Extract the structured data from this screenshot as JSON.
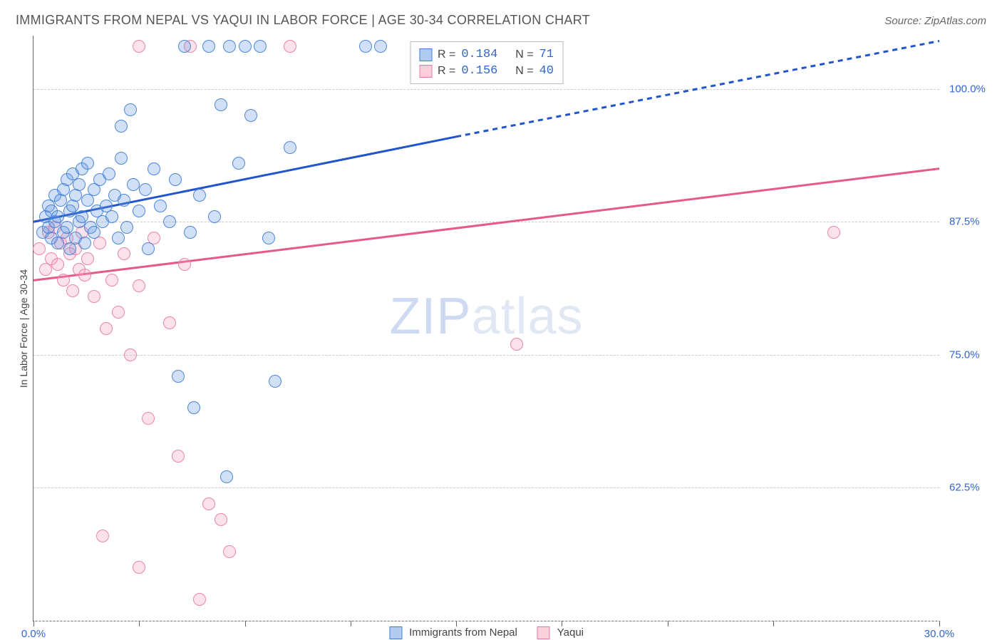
{
  "header": {
    "title": "IMMIGRANTS FROM NEPAL VS YAQUI IN LABOR FORCE | AGE 30-34 CORRELATION CHART",
    "source_prefix": "Source: ",
    "source_name": "ZipAtlas.com"
  },
  "chart": {
    "type": "scatter",
    "ylabel": "In Labor Force | Age 30-34",
    "xlim": [
      0,
      30
    ],
    "ylim": [
      50,
      105
    ],
    "xtick_positions": [
      0,
      3.5,
      7,
      10.5,
      14,
      17.5,
      21,
      24.5,
      30
    ],
    "xtick_labels": {
      "0": "0.0%",
      "30": "30.0%"
    },
    "ytick_positions": [
      50,
      62.5,
      75,
      87.5,
      100
    ],
    "ytick_labels": {
      "62.5": "62.5%",
      "75": "75.0%",
      "87.5": "87.5%",
      "100": "100.0%"
    },
    "grid_color": "#cccccc",
    "background_color": "#ffffff",
    "axis_color": "#666666",
    "point_radius": 9,
    "point_fill_opacity": 0.3,
    "point_stroke_opacity": 0.9,
    "line_width": 3,
    "watermark": {
      "part1": "ZIP",
      "part2": "atlas"
    }
  },
  "series": {
    "blue": {
      "label": "Immigrants from Nepal",
      "color": "#6699e0",
      "line_color": "#2255cc",
      "stroke": "#3d7dd6",
      "R": "0.184",
      "N": "71",
      "trend": {
        "x1": 0,
        "y1": 87.5,
        "x2": 14,
        "y2": 95.5,
        "x2_ext": 30,
        "y2_ext": 104.5
      },
      "points": [
        [
          0.3,
          86.5
        ],
        [
          0.4,
          88.0
        ],
        [
          0.5,
          87.0
        ],
        [
          0.5,
          89.0
        ],
        [
          0.6,
          86.0
        ],
        [
          0.6,
          88.5
        ],
        [
          0.7,
          87.5
        ],
        [
          0.7,
          90.0
        ],
        [
          0.8,
          85.5
        ],
        [
          0.8,
          88.0
        ],
        [
          0.9,
          89.5
        ],
        [
          1.0,
          86.5
        ],
        [
          1.0,
          90.5
        ],
        [
          1.1,
          87.0
        ],
        [
          1.1,
          91.5
        ],
        [
          1.2,
          85.0
        ],
        [
          1.2,
          88.5
        ],
        [
          1.3,
          89.0
        ],
        [
          1.3,
          92.0
        ],
        [
          1.4,
          86.0
        ],
        [
          1.4,
          90.0
        ],
        [
          1.5,
          87.5
        ],
        [
          1.5,
          91.0
        ],
        [
          1.6,
          88.0
        ],
        [
          1.6,
          92.5
        ],
        [
          1.7,
          85.5
        ],
        [
          1.8,
          89.5
        ],
        [
          1.8,
          93.0
        ],
        [
          1.9,
          87.0
        ],
        [
          2.0,
          90.5
        ],
        [
          2.0,
          86.5
        ],
        [
          2.1,
          88.5
        ],
        [
          2.2,
          91.5
        ],
        [
          2.3,
          87.5
        ],
        [
          2.4,
          89.0
        ],
        [
          2.5,
          92.0
        ],
        [
          2.6,
          88.0
        ],
        [
          2.7,
          90.0
        ],
        [
          2.8,
          86.0
        ],
        [
          2.9,
          93.5
        ],
        [
          3.0,
          89.5
        ],
        [
          3.1,
          87.0
        ],
        [
          3.3,
          91.0
        ],
        [
          3.5,
          88.5
        ],
        [
          3.7,
          90.5
        ],
        [
          3.8,
          85.0
        ],
        [
          4.0,
          92.5
        ],
        [
          4.2,
          89.0
        ],
        [
          4.5,
          87.5
        ],
        [
          4.7,
          91.5
        ],
        [
          5.0,
          104.0
        ],
        [
          5.2,
          86.5
        ],
        [
          5.5,
          90.0
        ],
        [
          5.8,
          104.0
        ],
        [
          6.0,
          88.0
        ],
        [
          6.2,
          98.5
        ],
        [
          6.5,
          104.0
        ],
        [
          6.8,
          93.0
        ],
        [
          7.0,
          104.0
        ],
        [
          7.2,
          97.5
        ],
        [
          7.5,
          104.0
        ],
        [
          7.8,
          86.0
        ],
        [
          8.0,
          72.5
        ],
        [
          8.5,
          94.5
        ],
        [
          4.8,
          73.0
        ],
        [
          5.3,
          70.0
        ],
        [
          3.2,
          98.0
        ],
        [
          2.9,
          96.5
        ],
        [
          6.4,
          63.5
        ],
        [
          11.0,
          104.0
        ],
        [
          11.5,
          104.0
        ]
      ]
    },
    "pink": {
      "label": "Yaqui",
      "color": "#f4a0b8",
      "line_color": "#e65a8a",
      "stroke": "#e87ba0",
      "R": "0.156",
      "N": "40",
      "trend": {
        "x1": 0,
        "y1": 82.0,
        "x2": 30,
        "y2": 92.5
      },
      "points": [
        [
          0.2,
          85.0
        ],
        [
          0.4,
          83.0
        ],
        [
          0.5,
          86.5
        ],
        [
          0.6,
          84.0
        ],
        [
          0.7,
          87.0
        ],
        [
          0.8,
          83.5
        ],
        [
          0.9,
          85.5
        ],
        [
          1.0,
          82.0
        ],
        [
          1.1,
          86.0
        ],
        [
          1.2,
          84.5
        ],
        [
          1.3,
          81.0
        ],
        [
          1.4,
          85.0
        ],
        [
          1.5,
          83.0
        ],
        [
          1.6,
          86.5
        ],
        [
          1.7,
          82.5
        ],
        [
          1.8,
          84.0
        ],
        [
          2.0,
          80.5
        ],
        [
          2.2,
          85.5
        ],
        [
          2.4,
          77.5
        ],
        [
          2.6,
          82.0
        ],
        [
          2.8,
          79.0
        ],
        [
          3.0,
          84.5
        ],
        [
          3.2,
          75.0
        ],
        [
          3.5,
          81.5
        ],
        [
          3.8,
          69.0
        ],
        [
          4.0,
          86.0
        ],
        [
          4.5,
          78.0
        ],
        [
          4.8,
          65.5
        ],
        [
          5.0,
          83.5
        ],
        [
          5.2,
          104.0
        ],
        [
          5.5,
          52.0
        ],
        [
          5.8,
          61.0
        ],
        [
          6.2,
          59.5
        ],
        [
          6.5,
          56.5
        ],
        [
          2.3,
          58.0
        ],
        [
          3.5,
          55.0
        ],
        [
          3.5,
          104.0
        ],
        [
          8.5,
          104.0
        ],
        [
          16.0,
          76.0
        ],
        [
          26.5,
          86.5
        ]
      ]
    }
  },
  "legend_top": {
    "rows": [
      {
        "swatch": "blue",
        "R_label": "R = ",
        "N_label": "N = "
      },
      {
        "swatch": "pink",
        "R_label": "R = ",
        "N_label": "N = "
      }
    ]
  }
}
